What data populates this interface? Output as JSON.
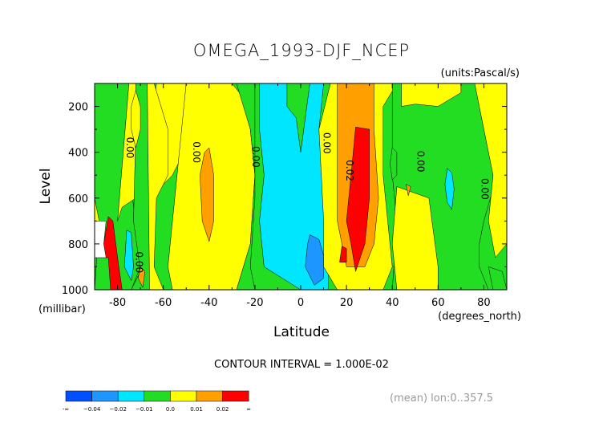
{
  "chart_data": {
    "type": "contour",
    "title": "OMEGA_1993-DJF_NCEP",
    "units_label": "(units:Pascal/s)",
    "xlabel": "Latitude",
    "x_units_label": "(degrees_north)",
    "ylabel": "Level",
    "y_units_label": "(millibar)",
    "xlim": [
      -90,
      90
    ],
    "ylim": [
      1000,
      100
    ],
    "x_ticks": [
      -80,
      -60,
      -40,
      -20,
      0,
      20,
      40,
      60,
      80
    ],
    "x_tick_labels": [
      "-80",
      "-60",
      "-40",
      "-20",
      "0",
      "20",
      "40",
      "60",
      "80"
    ],
    "y_ticks": [
      200,
      400,
      600,
      800,
      1000
    ],
    "y_tick_labels": [
      "200",
      "400",
      "600",
      "800",
      "1000"
    ],
    "contour_interval_text": "CONTOUR INTERVAL = 1.000E-02",
    "footer_text": "(mean) lon:0..357.5",
    "contour_labels": [
      {
        "text": "0.00",
        "lat": -76,
        "lev": 380
      },
      {
        "text": "0.00",
        "lat": -47,
        "lev": 400
      },
      {
        "text": "0.00",
        "lat": -21,
        "lev": 420
      },
      {
        "text": "0.00",
        "lat": 10,
        "lev": 360
      },
      {
        "text": "0.02",
        "lat": 20,
        "lev": 480
      },
      {
        "text": "0.00",
        "lat": 51,
        "lev": 440
      },
      {
        "text": "0.00",
        "lat": 79,
        "lev": 560
      },
      {
        "text": "0.00",
        "lat": -72,
        "lev": 880
      }
    ],
    "fill_colors": [
      "#ffffff",
      "#0050ff",
      "#1e96ff",
      "#00e6ff",
      "#22dd22",
      "#ffff00",
      "#ffa000",
      "#ff0000"
    ],
    "colorbar": {
      "colors": [
        "#0050ff",
        "#1e96ff",
        "#00e6ff",
        "#22dd22",
        "#ffff00",
        "#ffa000",
        "#ff0000"
      ],
      "labels": [
        "-∞",
        "−0.04",
        "−0.02",
        "−0.01",
        "0.0",
        "0.01",
        "0.02",
        "∞"
      ]
    },
    "field_regions": [
      {
        "level": 4,
        "pts": [
          [
            -90,
            100
          ],
          [
            90,
            100
          ],
          [
            90,
            1000
          ],
          [
            -90,
            1000
          ]
        ]
      },
      {
        "level": 5,
        "pts": [
          [
            -90,
            100
          ],
          [
            -75,
            100
          ],
          [
            -80,
            300
          ],
          [
            -80,
            600
          ],
          [
            -85,
            700
          ],
          [
            -90,
            700
          ]
        ]
      },
      {
        "level": 4,
        "pts": [
          [
            -90,
            1000
          ],
          [
            -74,
            1000
          ],
          [
            -70,
            900
          ],
          [
            -72,
            700
          ],
          [
            -75,
            500
          ],
          [
            -75,
            300
          ],
          [
            -72,
            100
          ],
          [
            -90,
            100
          ],
          [
            -90,
            600
          ],
          [
            -88,
            700
          ]
        ]
      },
      {
        "level": 5,
        "pts": [
          [
            -75,
            100
          ],
          [
            -72,
            100
          ],
          [
            -72,
            600
          ],
          [
            -78,
            640
          ],
          [
            -80,
            700
          ]
        ]
      },
      {
        "level": 4,
        "pts": [
          [
            -72,
            100
          ],
          [
            -66,
            100
          ],
          [
            -64,
            400
          ],
          [
            -64,
            900
          ],
          [
            -62,
            1000
          ],
          [
            -74,
            1000
          ],
          [
            -70,
            920
          ],
          [
            -73,
            700
          ],
          [
            -72,
            300
          ]
        ]
      },
      {
        "level": 5,
        "pts": [
          [
            -74,
            200
          ],
          [
            -72,
            130
          ],
          [
            -70,
            200
          ],
          [
            -70,
            300
          ],
          [
            -72,
            380
          ],
          [
            -74,
            300
          ]
        ]
      },
      {
        "level": 5,
        "pts": [
          [
            -63,
            100
          ],
          [
            -50,
            100
          ],
          [
            -50,
            300
          ],
          [
            -52,
            420
          ],
          [
            -56,
            500
          ],
          [
            -62,
            560
          ],
          [
            -64,
            400
          ],
          [
            -64,
            200
          ]
        ]
      },
      {
        "level": 5,
        "pts": [
          [
            -67,
            100
          ],
          [
            -64,
            100
          ],
          [
            -61,
            200
          ],
          [
            -58,
            300
          ],
          [
            -58,
            500
          ],
          [
            -63,
            600
          ],
          [
            -64,
            900
          ],
          [
            -60,
            1000
          ],
          [
            -66,
            1000
          ]
        ]
      },
      {
        "level": 5,
        "pts": [
          [
            -30,
            100
          ],
          [
            -50,
            100
          ],
          [
            -52,
            300
          ],
          [
            -56,
            700
          ],
          [
            -58,
            900
          ],
          [
            -56,
            1000
          ],
          [
            -28,
            1000
          ],
          [
            -22,
            800
          ],
          [
            -20,
            500
          ],
          [
            -22,
            300
          ],
          [
            -26,
            150
          ]
        ]
      },
      {
        "level": 6,
        "pts": [
          [
            -40,
            380
          ],
          [
            -38,
            500
          ],
          [
            -38,
            700
          ],
          [
            -40,
            790
          ],
          [
            -43,
            700
          ],
          [
            -44,
            500
          ],
          [
            -42,
            400
          ]
        ]
      },
      {
        "level": 4,
        "pts": [
          [
            -28,
            100
          ],
          [
            -20,
            100
          ],
          [
            -20,
            300
          ],
          [
            -20,
            600
          ],
          [
            -22,
            900
          ],
          [
            -20,
            1000
          ],
          [
            -28,
            1000
          ],
          [
            -22,
            800
          ],
          [
            -20,
            500
          ],
          [
            -22,
            300
          ]
        ]
      },
      {
        "level": 3,
        "pts": [
          [
            -18,
            100
          ],
          [
            -6,
            100
          ],
          [
            -6,
            200
          ],
          [
            -2,
            250
          ],
          [
            0,
            400
          ],
          [
            2,
            250
          ],
          [
            4,
            100
          ],
          [
            10,
            100
          ],
          [
            8,
            300
          ],
          [
            12,
            700
          ],
          [
            12,
            1000
          ],
          [
            0,
            1000
          ],
          [
            -8,
            950
          ],
          [
            -16,
            900
          ],
          [
            -18,
            700
          ],
          [
            -16,
            500
          ],
          [
            -18,
            300
          ]
        ]
      },
      {
        "level": 2,
        "pts": [
          [
            4,
            760
          ],
          [
            8,
            780
          ],
          [
            10,
            850
          ],
          [
            10,
            950
          ],
          [
            6,
            980
          ],
          [
            2,
            900
          ],
          [
            3,
            800
          ]
        ]
      },
      {
        "level": 5,
        "pts": [
          [
            13,
            100
          ],
          [
            42,
            100
          ],
          [
            36,
            200
          ],
          [
            36,
            500
          ],
          [
            38,
            700
          ],
          [
            40,
            900
          ],
          [
            36,
            1000
          ],
          [
            16,
            1000
          ],
          [
            10,
            900
          ],
          [
            10,
            700
          ],
          [
            8,
            300
          ]
        ]
      },
      {
        "level": 6,
        "pts": [
          [
            16,
            100
          ],
          [
            32,
            100
          ],
          [
            32,
            300
          ],
          [
            34,
            600
          ],
          [
            32,
            800
          ],
          [
            28,
            900
          ],
          [
            20,
            900
          ],
          [
            16,
            700
          ],
          [
            16,
            400
          ]
        ]
      },
      {
        "level": 7,
        "pts": [
          [
            24,
            290
          ],
          [
            30,
            300
          ],
          [
            30,
            600
          ],
          [
            28,
            800
          ],
          [
            24,
            920
          ],
          [
            22,
            800
          ],
          [
            20,
            700
          ],
          [
            22,
            500
          ]
        ]
      },
      {
        "level": 7,
        "pts": [
          [
            18,
            810
          ],
          [
            20,
            820
          ],
          [
            20,
            880
          ],
          [
            17,
            880
          ]
        ]
      },
      {
        "level": 4,
        "pts": [
          [
            40,
            100
          ],
          [
            90,
            100
          ],
          [
            90,
            500
          ],
          [
            84,
            560
          ],
          [
            80,
            700
          ],
          [
            78,
            800
          ],
          [
            78,
            900
          ],
          [
            82,
            1000
          ],
          [
            40,
            1000
          ],
          [
            42,
            700
          ],
          [
            40,
            500
          ]
        ]
      },
      {
        "level": 5,
        "pts": [
          [
            44,
            100
          ],
          [
            70,
            100
          ],
          [
            70,
            140
          ],
          [
            60,
            200
          ],
          [
            50,
            190
          ],
          [
            44,
            200
          ]
        ]
      },
      {
        "level": 5,
        "pts": [
          [
            42,
            550
          ],
          [
            56,
            600
          ],
          [
            60,
            900
          ],
          [
            60,
            1000
          ],
          [
            42,
            1000
          ],
          [
            40,
            800
          ]
        ]
      },
      {
        "level": 5,
        "pts": [
          [
            76,
            100
          ],
          [
            90,
            100
          ],
          [
            90,
            800
          ],
          [
            85,
            860
          ],
          [
            82,
            700
          ],
          [
            84,
            500
          ],
          [
            80,
            300
          ],
          [
            78,
            200
          ]
        ]
      },
      {
        "level": 3,
        "pts": [
          [
            64,
            470
          ],
          [
            66,
            490
          ],
          [
            67,
            560
          ],
          [
            66,
            650
          ],
          [
            64,
            620
          ],
          [
            63,
            540
          ]
        ]
      },
      {
        "level": 4,
        "pts": [
          [
            40,
            380
          ],
          [
            42,
            400
          ],
          [
            42,
            500
          ],
          [
            40,
            520
          ],
          [
            39,
            450
          ]
        ]
      },
      {
        "level": 4,
        "pts": [
          [
            82,
            900
          ],
          [
            88,
            920
          ],
          [
            90,
            1000
          ],
          [
            84,
            1000
          ]
        ]
      },
      {
        "level": 7,
        "pts": [
          [
            -84,
            680
          ],
          [
            -82,
            700
          ],
          [
            -80,
            860
          ],
          [
            -78,
            1000
          ],
          [
            -83,
            1000
          ],
          [
            -84,
            860
          ],
          [
            -86,
            860
          ],
          [
            -86,
            800
          ]
        ]
      },
      {
        "level": 0,
        "pts": [
          [
            -90,
            700
          ],
          [
            -85,
            700
          ],
          [
            -86,
            800
          ],
          [
            -85,
            860
          ],
          [
            -90,
            860
          ]
        ]
      },
      {
        "level": 3,
        "pts": [
          [
            -76,
            740
          ],
          [
            -74,
            750
          ],
          [
            -73,
            900
          ],
          [
            -74,
            960
          ],
          [
            -77,
            900
          ]
        ]
      },
      {
        "level": 6,
        "pts": [
          [
            -70,
            900
          ],
          [
            -68,
            920
          ],
          [
            -69,
            990
          ],
          [
            -71,
            950
          ]
        ]
      },
      {
        "level": 6,
        "pts": [
          [
            46,
            540
          ],
          [
            48,
            550
          ],
          [
            47,
            590
          ]
        ]
      }
    ]
  }
}
